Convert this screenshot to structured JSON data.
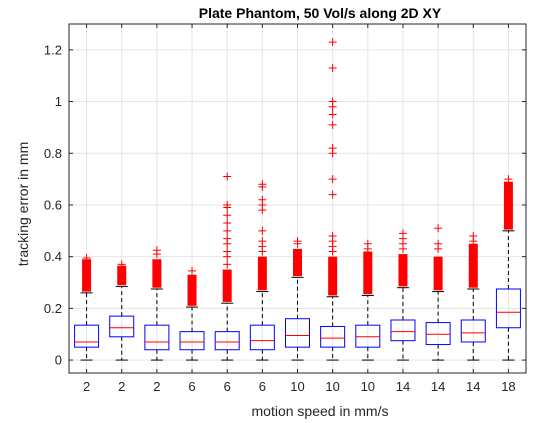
{
  "chart_data": {
    "type": "box",
    "title": "Plate Phantom, 50 Vol/s along 2D XY",
    "xlabel": "motion speed in mm/s",
    "ylabel": "tracking error in mm",
    "categories": [
      "2",
      "2",
      "2",
      "6",
      "6",
      "6",
      "10",
      "10",
      "10",
      "14",
      "14",
      "14",
      "18"
    ],
    "ylim": [
      -0.05,
      1.3
    ],
    "yticks": [
      0,
      0.2,
      0.4,
      0.6,
      0.8,
      1,
      1.2
    ],
    "ytick_labels": [
      "0",
      "0.2",
      "0.4",
      "0.6",
      "0.8",
      "1",
      "1.2"
    ],
    "grid": true,
    "colors": {
      "box": "#0000ff",
      "median": "#ff0000",
      "whisker": "#000000",
      "outlier": "#ff0000",
      "grid": "#e5e5e5",
      "axis": "#262626"
    },
    "boxes": [
      {
        "lower_whisker": 0.0,
        "q1": 0.05,
        "median": 0.07,
        "q3": 0.135,
        "upper_whisker": 0.26,
        "outlier_band": [
          0.265,
          0.39
        ],
        "outliers": [
          0.395
        ]
      },
      {
        "lower_whisker": 0.0,
        "q1": 0.09,
        "median": 0.125,
        "q3": 0.17,
        "upper_whisker": 0.285,
        "outlier_band": [
          0.29,
          0.365
        ],
        "outliers": [
          0.37
        ]
      },
      {
        "lower_whisker": 0.0,
        "q1": 0.04,
        "median": 0.07,
        "q3": 0.135,
        "upper_whisker": 0.275,
        "outlier_band": [
          0.28,
          0.39
        ],
        "outliers": [
          0.41,
          0.425
        ]
      },
      {
        "lower_whisker": 0.0,
        "q1": 0.04,
        "median": 0.07,
        "q3": 0.11,
        "upper_whisker": 0.205,
        "outlier_band": [
          0.21,
          0.33
        ],
        "outliers": [
          0.345
        ]
      },
      {
        "lower_whisker": 0.0,
        "q1": 0.04,
        "median": 0.07,
        "q3": 0.11,
        "upper_whisker": 0.22,
        "outlier_band": [
          0.225,
          0.35
        ],
        "outliers": [
          0.37,
          0.4,
          0.42,
          0.45,
          0.47,
          0.5,
          0.53,
          0.56,
          0.59,
          0.6,
          0.71
        ]
      },
      {
        "lower_whisker": 0.0,
        "q1": 0.04,
        "median": 0.075,
        "q3": 0.135,
        "upper_whisker": 0.265,
        "outlier_band": [
          0.27,
          0.4
        ],
        "outliers": [
          0.42,
          0.44,
          0.46,
          0.5,
          0.58,
          0.6,
          0.62,
          0.67,
          0.68
        ]
      },
      {
        "lower_whisker": 0.0,
        "q1": 0.05,
        "median": 0.095,
        "q3": 0.16,
        "upper_whisker": 0.32,
        "outlier_band": [
          0.325,
          0.43
        ],
        "outliers": [
          0.45,
          0.46
        ]
      },
      {
        "lower_whisker": 0.0,
        "q1": 0.05,
        "median": 0.085,
        "q3": 0.13,
        "upper_whisker": 0.245,
        "outlier_band": [
          0.25,
          0.4
        ],
        "outliers": [
          0.42,
          0.44,
          0.46,
          0.48,
          0.64,
          0.7,
          0.8,
          0.82,
          0.91,
          0.95,
          0.98,
          1.0,
          1.13,
          1.23
        ]
      },
      {
        "lower_whisker": 0.0,
        "q1": 0.05,
        "median": 0.09,
        "q3": 0.135,
        "upper_whisker": 0.25,
        "outlier_band": [
          0.255,
          0.42
        ],
        "outliers": [
          0.43,
          0.45
        ]
      },
      {
        "lower_whisker": 0.0,
        "q1": 0.075,
        "median": 0.11,
        "q3": 0.155,
        "upper_whisker": 0.28,
        "outlier_band": [
          0.285,
          0.41
        ],
        "outliers": [
          0.43,
          0.45,
          0.47,
          0.49
        ]
      },
      {
        "lower_whisker": 0.0,
        "q1": 0.06,
        "median": 0.1,
        "q3": 0.145,
        "upper_whisker": 0.265,
        "outlier_band": [
          0.27,
          0.4
        ],
        "outliers": [
          0.43,
          0.45,
          0.51
        ]
      },
      {
        "lower_whisker": 0.0,
        "q1": 0.07,
        "median": 0.105,
        "q3": 0.155,
        "upper_whisker": 0.275,
        "outlier_band": [
          0.28,
          0.45
        ],
        "outliers": [
          0.46,
          0.48
        ]
      },
      {
        "lower_whisker": 0.0,
        "q1": 0.125,
        "median": 0.185,
        "q3": 0.275,
        "upper_whisker": 0.5,
        "outlier_band": [
          0.505,
          0.69
        ],
        "outliers": [
          0.7
        ]
      }
    ]
  }
}
